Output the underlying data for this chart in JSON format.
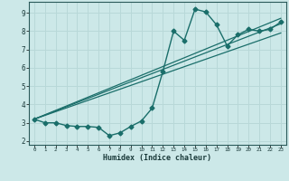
{
  "xlabel": "Humidex (Indice chaleur)",
  "bg_color": "#cce8e8",
  "grid_color": "#b8d8d8",
  "line_color": "#1a6e6a",
  "xlim": [
    -0.5,
    23.5
  ],
  "ylim": [
    1.8,
    9.6
  ],
  "yticks": [
    2,
    3,
    4,
    5,
    6,
    7,
    8,
    9
  ],
  "xticks": [
    0,
    1,
    2,
    3,
    4,
    5,
    6,
    7,
    8,
    9,
    10,
    11,
    12,
    13,
    14,
    15,
    16,
    17,
    18,
    19,
    20,
    21,
    22,
    23
  ],
  "series1_x": [
    0,
    1,
    2,
    3,
    4,
    5,
    6,
    7,
    8,
    9,
    10,
    11,
    12,
    13,
    14,
    15,
    16,
    17,
    18,
    19,
    20,
    21,
    22,
    23
  ],
  "series1_y": [
    3.2,
    3.0,
    3.0,
    2.85,
    2.8,
    2.8,
    2.75,
    2.3,
    2.45,
    2.8,
    3.1,
    3.8,
    5.8,
    8.0,
    7.5,
    9.2,
    9.05,
    8.35,
    7.2,
    7.8,
    8.1,
    8.0,
    8.1,
    8.5
  ],
  "line2_x": [
    0,
    23
  ],
  "line2_y": [
    3.2,
    8.4
  ],
  "line3_x": [
    0,
    23
  ],
  "line3_y": [
    3.2,
    7.9
  ],
  "line4_x": [
    0,
    23
  ],
  "line4_y": [
    3.2,
    8.7
  ]
}
